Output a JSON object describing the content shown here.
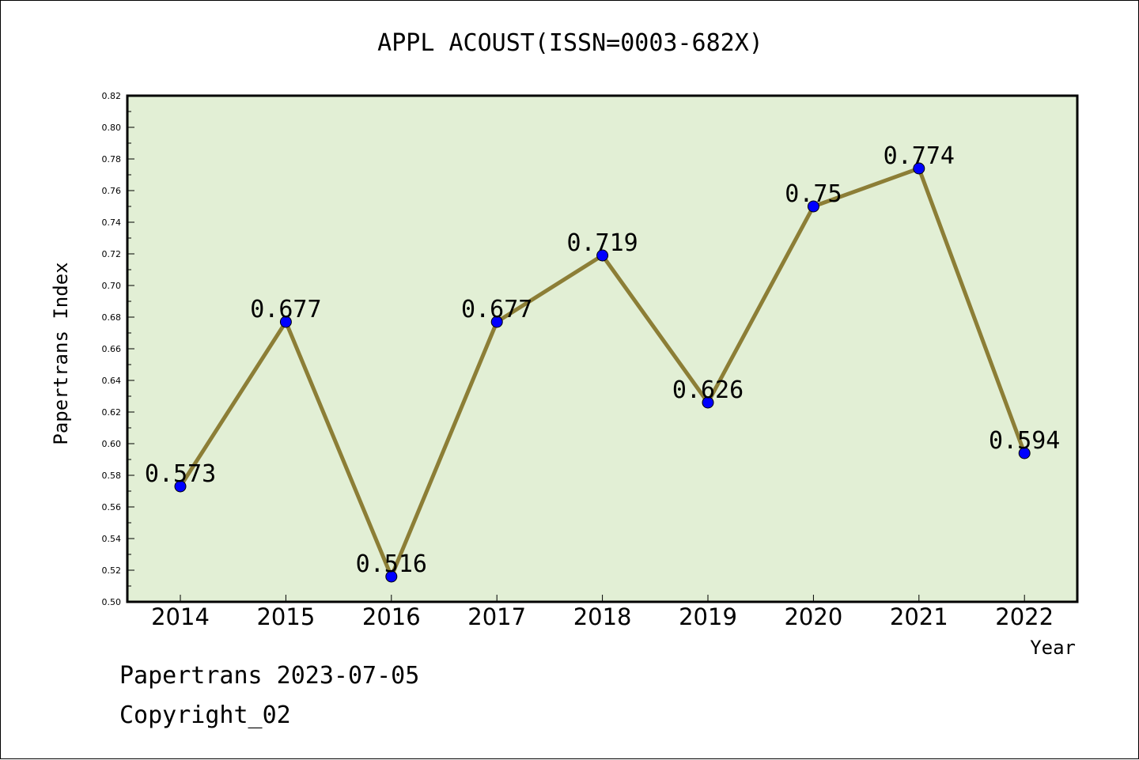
{
  "chart_data": {
    "type": "line",
    "title": "APPL ACOUST(ISSN=0003-682X)",
    "xlabel": "Year",
    "ylabel": "Papertrans Index",
    "categories": [
      "2014",
      "2015",
      "2016",
      "2017",
      "2018",
      "2019",
      "2020",
      "2021",
      "2022"
    ],
    "series": [
      {
        "values": [
          0.573,
          0.677,
          0.516,
          0.677,
          0.719,
          0.626,
          0.75,
          0.774,
          0.594
        ],
        "data_labels": [
          "0.573",
          "0.677",
          "0.516",
          "0.677",
          "0.719",
          "0.626",
          "0.75",
          "0.774",
          "0.594"
        ]
      }
    ],
    "ylim": [
      0.5,
      0.82
    ],
    "y_ticks": [
      "0.50",
      "0.52",
      "0.54",
      "0.56",
      "0.58",
      "0.60",
      "0.62",
      "0.64",
      "0.66",
      "0.68",
      "0.70",
      "0.72",
      "0.74",
      "0.76",
      "0.78",
      "0.80",
      "0.82"
    ],
    "grid": false,
    "legend": "none",
    "colors": {
      "plot_background": "#e2efd5",
      "line": "#8c7e36",
      "marker": "#0000ff",
      "axis": "#000000"
    }
  },
  "footer": {
    "date_line": "Papertrans 2023-07-05",
    "copyright_line": "Copyright_02"
  }
}
